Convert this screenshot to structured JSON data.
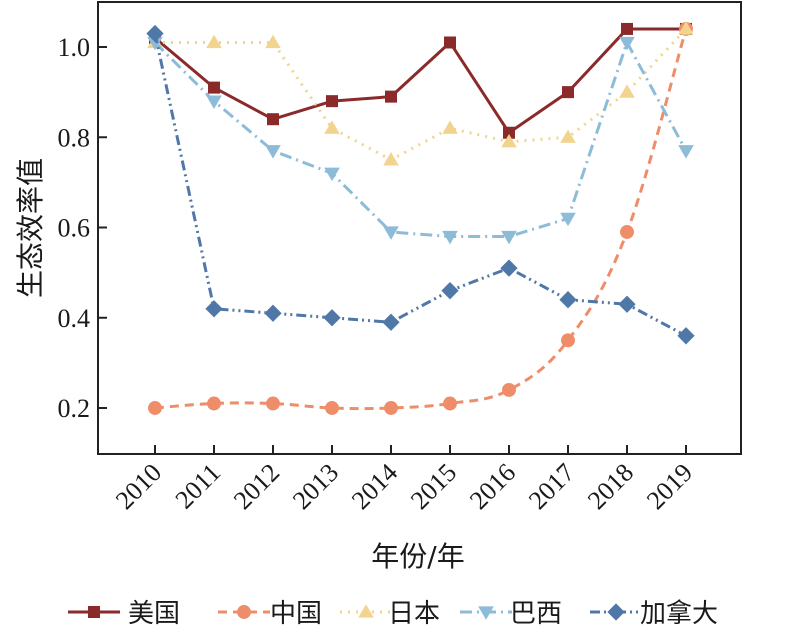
{
  "chart_data": {
    "type": "line",
    "xlabel": "年份/年",
    "ylabel": "生态效率值",
    "x": [
      "2010",
      "2011",
      "2012",
      "2013",
      "2014",
      "2015",
      "2016",
      "2017",
      "2018",
      "2019"
    ],
    "yticks": [
      "0.2",
      "0.4",
      "0.6",
      "0.8",
      "1.0"
    ],
    "ylim": [
      0.1,
      1.1
    ],
    "grid": false,
    "legend_position": "bottom",
    "series": [
      {
        "name": "美国",
        "color": "#8b2a2a",
        "marker": "square",
        "dash": "solid",
        "values": [
          1.02,
          0.91,
          0.84,
          0.88,
          0.89,
          1.01,
          0.81,
          0.9,
          1.04,
          1.04
        ]
      },
      {
        "name": "中国",
        "color": "#ef8d6a",
        "marker": "circle",
        "dash": "dash",
        "values": [
          0.2,
          0.21,
          0.21,
          0.2,
          0.2,
          0.21,
          0.24,
          0.35,
          0.59,
          1.04
        ]
      },
      {
        "name": "日本",
        "color": "#f3d48f",
        "marker": "triangle-up",
        "dash": "dot",
        "values": [
          1.01,
          1.01,
          1.01,
          0.82,
          0.75,
          0.82,
          0.79,
          0.8,
          0.9,
          1.04
        ]
      },
      {
        "name": "巴西",
        "color": "#8cbcd8",
        "marker": "triangle-down",
        "dash": "dashdot",
        "values": [
          1.01,
          0.88,
          0.77,
          0.72,
          0.59,
          0.58,
          0.58,
          0.62,
          1.01,
          0.77
        ]
      },
      {
        "name": "加拿大",
        "color": "#4f77a8",
        "marker": "diamond",
        "dash": "dashdotdot",
        "values": [
          1.03,
          0.42,
          0.41,
          0.4,
          0.39,
          0.46,
          0.51,
          0.44,
          0.43,
          0.36
        ]
      }
    ]
  }
}
